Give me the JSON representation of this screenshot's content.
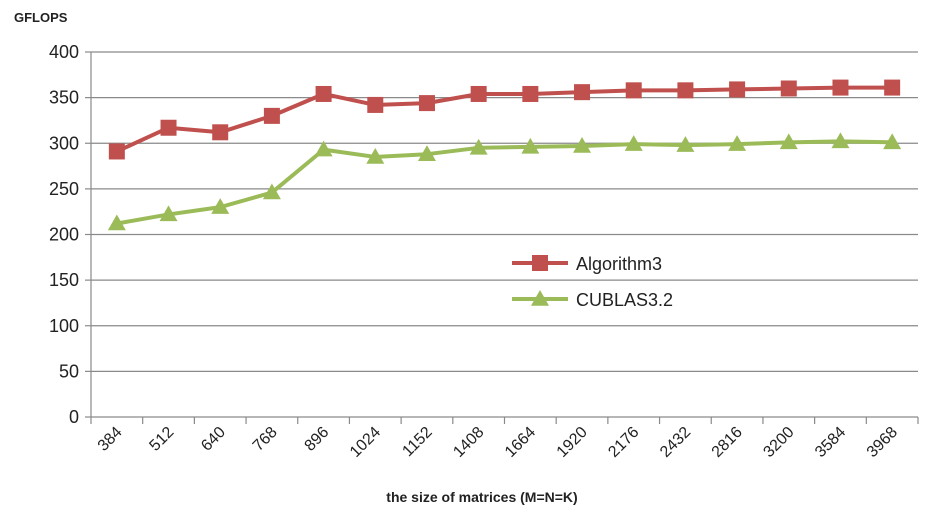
{
  "chart_data": {
    "type": "line",
    "title": "",
    "ylabel": "GFLOPS",
    "xlabel": "the size of matrices (M=N=K)",
    "categories": [
      "384",
      "512",
      "640",
      "768",
      "896",
      "1024",
      "1152",
      "1408",
      "1664",
      "1920",
      "2176",
      "2432",
      "2816",
      "3200",
      "3584",
      "3968"
    ],
    "ylim": [
      0,
      400
    ],
    "yticks": [
      0,
      50,
      100,
      150,
      200,
      250,
      300,
      350,
      400
    ],
    "grid": true,
    "legend_position": "right",
    "series": [
      {
        "name": "Algorithm3",
        "color": "#c0504d",
        "marker": "square",
        "values": [
          291,
          317,
          312,
          330,
          354,
          342,
          344,
          354,
          354,
          356,
          358,
          358,
          359,
          360,
          361,
          361
        ]
      },
      {
        "name": "CUBLAS3.2",
        "color": "#9bbb59",
        "marker": "triangle",
        "values": [
          212,
          222,
          230,
          246,
          293,
          285,
          288,
          295,
          296,
          297,
          299,
          298,
          299,
          301,
          302,
          301
        ]
      }
    ]
  }
}
